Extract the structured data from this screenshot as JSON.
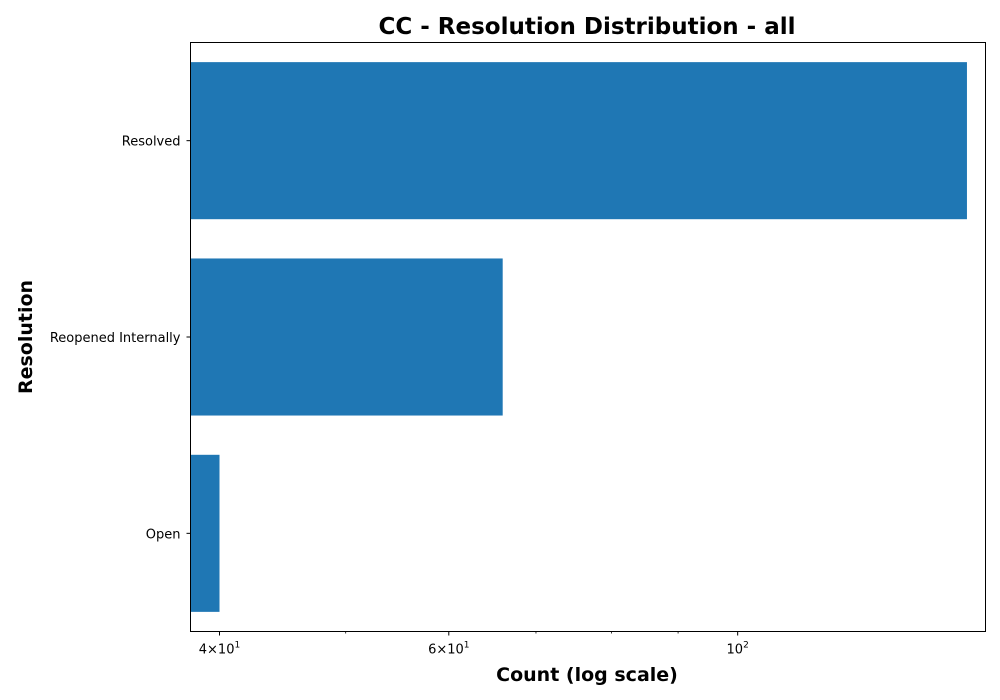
{
  "chart_data": {
    "type": "bar",
    "orientation": "horizontal",
    "title": "CC - Resolution Distribution - all",
    "xlabel": "Count (log scale)",
    "ylabel": "Resolution",
    "x_scale": "log",
    "xlim": [
      38,
      155
    ],
    "x_major_ticks": [
      {
        "value": 40,
        "base": "4×10",
        "exp": "1"
      },
      {
        "value": 60,
        "base": "6×10",
        "exp": "1"
      },
      {
        "value": 100,
        "base": "10",
        "exp": "2"
      }
    ],
    "x_minor_ticks": [
      50,
      70,
      80,
      90
    ],
    "categories": [
      "Resolved",
      "Reopened Internally",
      "Open"
    ],
    "values": [
      150,
      66,
      40
    ],
    "color": "#1f77b4",
    "grid": false,
    "legend": "none"
  }
}
